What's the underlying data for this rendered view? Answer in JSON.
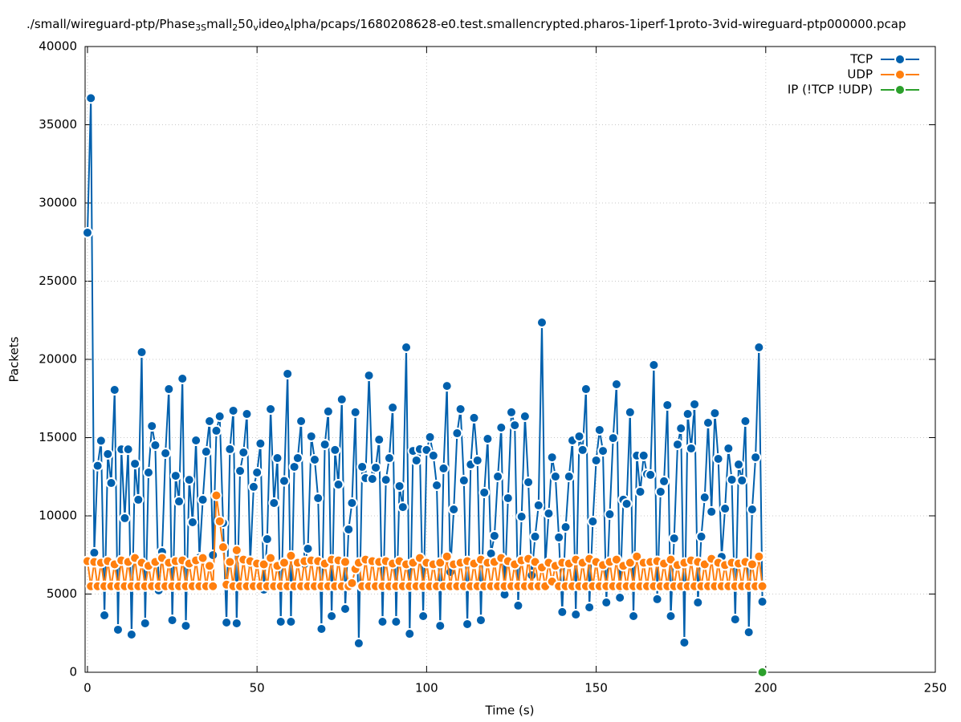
{
  "chart_data": {
    "type": "line",
    "title": [
      "./small/wireguard-ptp/Phase",
      "3S",
      "mall",
      "2",
      "50",
      "v",
      "ideo",
      "A",
      "lpha/pcaps/1680208628-e0.test.smallencrypted.pharos-1iperf-1proto-3vid-wireguard-ptp000000.pcap"
    ],
    "xlabel": "Time (s)",
    "ylabel": "Packets",
    "xlim": [
      -0.7,
      250
    ],
    "xticks": [
      0,
      50,
      100,
      150,
      200,
      250
    ],
    "ylim": [
      0,
      40000
    ],
    "yticks": [
      0,
      5000,
      10000,
      15000,
      20000,
      25000,
      30000,
      35000,
      40000
    ],
    "grid": true,
    "legend": "top-right",
    "x": [
      0,
      1,
      2,
      3,
      4,
      5,
      6,
      7,
      8,
      9,
      10,
      11,
      12,
      13,
      14,
      15,
      16,
      17,
      18,
      19,
      20,
      21,
      22,
      23,
      24,
      25,
      26,
      27,
      28,
      29,
      30,
      31,
      32,
      33,
      34,
      35,
      36,
      37,
      38,
      39,
      40,
      41,
      42,
      43,
      44,
      45,
      46,
      47,
      48,
      49,
      50,
      51,
      52,
      53,
      54,
      55,
      56,
      57,
      58,
      59,
      60,
      61,
      62,
      63,
      64,
      65,
      66,
      67,
      68,
      69,
      70,
      71,
      72,
      73,
      74,
      75,
      76,
      77,
      78,
      79,
      80,
      81,
      82,
      83,
      84,
      85,
      86,
      87,
      88,
      89,
      90,
      91,
      92,
      93,
      94,
      95,
      96,
      97,
      98,
      99,
      100,
      101,
      102,
      103,
      104,
      105,
      106,
      107,
      108,
      109,
      110,
      111,
      112,
      113,
      114,
      115,
      116,
      117,
      118,
      119,
      120,
      121,
      122,
      123,
      124,
      125,
      126,
      127,
      128,
      129,
      130,
      131,
      132,
      133,
      134,
      135,
      136,
      137,
      138,
      139,
      140,
      141,
      142,
      143,
      144,
      145,
      146,
      147,
      148,
      149,
      150,
      151,
      152,
      153,
      154,
      155,
      156,
      157,
      158,
      159,
      160,
      161,
      162,
      163,
      164,
      165,
      166,
      167,
      168,
      169,
      170,
      171,
      172,
      173,
      174,
      175,
      176,
      177,
      178,
      179,
      180,
      181,
      182,
      183,
      184,
      185,
      186,
      187,
      188,
      189,
      190,
      191,
      192,
      193,
      194,
      195,
      196,
      197,
      198,
      199
    ],
    "series": [
      {
        "name": "TCP",
        "color": "#0060ad",
        "values": [
          28100,
          36700,
          7640,
          13200,
          14800,
          3640,
          13950,
          12100,
          18050,
          2720,
          14250,
          9850,
          14250,
          2410,
          13330,
          11030,
          20460,
          3130,
          12770,
          15740,
          14510,
          5230,
          7690,
          14000,
          18100,
          3330,
          12560,
          10920,
          18770,
          2970,
          12300,
          9590,
          14820,
          7330,
          11030,
          14100,
          16050,
          7490,
          15440,
          16360,
          9540,
          3180,
          14260,
          16720,
          3130,
          12870,
          14050,
          16510,
          6970,
          11850,
          12770,
          14620,
          5280,
          8510,
          16820,
          10820,
          13690,
          3230,
          12230,
          19080,
          3230,
          13130,
          13690,
          16050,
          6920,
          7900,
          15080,
          13590,
          11130,
          2770,
          14560,
          16670,
          3590,
          14210,
          12000,
          17440,
          4050,
          9130,
          10820,
          16620,
          1850,
          13130,
          12410,
          18970,
          12360,
          13080,
          14870,
          3230,
          12300,
          13690,
          16920,
          3230,
          11900,
          10560,
          20770,
          2460,
          14150,
          13540,
          14260,
          3590,
          14210,
          15030,
          13850,
          11950,
          2970,
          13030,
          18300,
          6410,
          10410,
          15280,
          16820,
          12260,
          3080,
          13280,
          16260,
          13540,
          3330,
          11490,
          14920,
          7590,
          8720,
          12510,
          15640,
          4970,
          11130,
          16620,
          15790,
          4260,
          9950,
          16360,
          12150,
          6200,
          8670,
          10670,
          22360,
          6770,
          10150,
          13740,
          12510,
          8620,
          3850,
          9280,
          12510,
          14820,
          3690,
          15080,
          14210,
          18100,
          4150,
          9640,
          13540,
          15490,
          14150,
          4460,
          10100,
          14970,
          18410,
          4770,
          11030,
          10770,
          16620,
          3590,
          13850,
          11540,
          13850,
          12670,
          12620,
          19640,
          4670,
          11540,
          12210,
          17080,
          3590,
          8560,
          14560,
          15590,
          1900,
          16510,
          14310,
          17130,
          4460,
          8670,
          11180,
          15950,
          10260,
          16560,
          13640,
          7380,
          10460,
          14310,
          12310,
          3380,
          13280,
          12260,
          16050,
          2560,
          10410,
          13740,
          20770,
          4510
        ]
      },
      {
        "name": "UDP",
        "color": "#ff7f0e",
        "values": [
          7100,
          5500,
          7050,
          5500,
          7000,
          5500,
          7100,
          5500,
          6900,
          5500,
          7150,
          5500,
          7050,
          5500,
          7300,
          5500,
          7000,
          5500,
          6800,
          5500,
          7050,
          5500,
          7300,
          5500,
          7000,
          5500,
          7100,
          5500,
          7150,
          5500,
          6950,
          5500,
          7150,
          5500,
          7300,
          5500,
          6800,
          5500,
          11300,
          9650,
          8000,
          5600,
          7050,
          5500,
          7800,
          5500,
          7200,
          5500,
          7100,
          5500,
          6950,
          5500,
          6900,
          5500,
          7300,
          5500,
          6800,
          5500,
          7000,
          5500,
          7450,
          5500,
          7000,
          5500,
          7100,
          5500,
          7150,
          5500,
          7100,
          5500,
          6950,
          5500,
          7200,
          5500,
          7150,
          5500,
          7050,
          5500,
          5700,
          6600,
          7000,
          5500,
          7200,
          5500,
          7100,
          5500,
          7050,
          5500,
          7100,
          5500,
          6950,
          5500,
          7100,
          5500,
          6900,
          5500,
          7000,
          5500,
          7300,
          5500,
          7000,
          5500,
          6900,
          5500,
          7000,
          5500,
          7400,
          5500,
          6900,
          5500,
          7000,
          5500,
          7100,
          5500,
          6950,
          5500,
          7200,
          5500,
          7000,
          5500,
          7050,
          5500,
          7300,
          5500,
          7100,
          5500,
          6900,
          5500,
          7150,
          5500,
          7250,
          5500,
          7050,
          5500,
          6700,
          5500,
          7000,
          5800,
          6800,
          5500,
          7000,
          5500,
          6950,
          5500,
          7200,
          5500,
          7000,
          5500,
          7250,
          5500,
          7050,
          5500,
          6850,
          5500,
          7050,
          5500,
          7200,
          5500,
          6800,
          5500,
          7000,
          5500,
          7400,
          5500,
          7000,
          5500,
          7050,
          5500,
          7100,
          5500,
          6950,
          5500,
          7200,
          5500,
          6850,
          5500,
          7000,
          5500,
          7150,
          5500,
          7050,
          5500,
          6900,
          5500,
          7250,
          5500,
          7000,
          5500,
          6850,
          5500,
          7000,
          5500,
          6950,
          5500,
          7050,
          5500,
          6900,
          5500,
          7400,
          5500
        ]
      },
      {
        "name": "IP (!TCP  !UDP)",
        "color": "#2ca02c",
        "x": [
          199
        ],
        "values": [
          0
        ]
      }
    ]
  }
}
